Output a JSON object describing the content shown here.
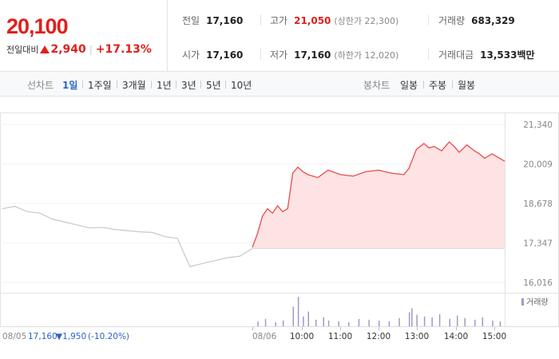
{
  "summary": {
    "current_price": "20,100",
    "change_label": "전일대비",
    "change_amount": "2,940",
    "change_percent": "+17.13%",
    "stats": {
      "prev_close": {
        "label": "전일",
        "value": "17,160"
      },
      "high": {
        "label": "고가",
        "value": "21,050",
        "sub": "(상한가 22,300)"
      },
      "volume": {
        "label": "거래량",
        "value": "683,329"
      },
      "open": {
        "label": "시가",
        "value": "17,160"
      },
      "low": {
        "label": "저가",
        "value": "17,160",
        "sub": "(하한가 12,020)"
      },
      "trade_value": {
        "label": "거래대금",
        "value": "13,533",
        "unit": "백만"
      }
    }
  },
  "toolbar": {
    "line_label": "선차트",
    "line_tabs": [
      "1일",
      "1주일",
      "3개월",
      "1년",
      "3년",
      "5년",
      "10년"
    ],
    "line_active": "1일",
    "candle_label": "봉차트",
    "candle_tabs": [
      "일봉",
      "주봉",
      "월봉"
    ]
  },
  "colors": {
    "up": "#e0201c",
    "down": "#2d64c8",
    "prev_day_line": "#c8c8c8",
    "today_line": "#ec4a4a",
    "today_fill": "#fde3e3",
    "volume_bar": "#a596c8"
  },
  "chart_data": {
    "type": "line",
    "price_axis": {
      "ticks": [
        "21,340",
        "20,009",
        "18,678",
        "17,347",
        "16,016"
      ],
      "tick_values": [
        21340,
        20009,
        18678,
        17347,
        16016
      ],
      "ylim": [
        16016,
        21340
      ]
    },
    "reference_price": 17160,
    "prev_day_info": {
      "date": "08/05",
      "close": "17,160",
      "change": "1,950",
      "change_percent": "(-10.20%)"
    },
    "x_ticks": [
      "08/06",
      "10:00",
      "11:00",
      "12:00",
      "13:00",
      "14:00",
      "15:00"
    ],
    "volume_legend": "거래량",
    "prev_day_series": {
      "name": "",
      "x": [
        0,
        0.05,
        0.1,
        0.15,
        0.2,
        0.25,
        0.3,
        0.35,
        0.4,
        0.45,
        0.5,
        0.55,
        0.6,
        0.65,
        0.7,
        0.75,
        0.8,
        0.85,
        0.9,
        0.95,
        1.0
      ],
      "values": [
        18500,
        18580,
        18400,
        18350,
        18150,
        18050,
        17950,
        17850,
        17870,
        17800,
        17760,
        17720,
        17700,
        17560,
        17500,
        16550,
        16650,
        16750,
        16850,
        16900,
        17160
      ]
    },
    "today_series": {
      "name": "",
      "x": [
        0,
        0.02,
        0.04,
        0.06,
        0.08,
        0.1,
        0.12,
        0.14,
        0.16,
        0.18,
        0.2,
        0.22,
        0.26,
        0.3,
        0.35,
        0.4,
        0.45,
        0.5,
        0.55,
        0.6,
        0.62,
        0.65,
        0.68,
        0.7,
        0.72,
        0.75,
        0.78,
        0.8,
        0.82,
        0.85,
        0.88,
        0.9,
        0.92,
        0.95,
        0.97,
        1.0
      ],
      "values": [
        17200,
        17650,
        18250,
        18500,
        18350,
        18600,
        18400,
        18500,
        19700,
        19900,
        19750,
        19650,
        19550,
        19800,
        19650,
        19600,
        19750,
        19800,
        19700,
        19650,
        19850,
        20500,
        20700,
        20550,
        20600,
        20450,
        20750,
        20600,
        20400,
        20650,
        20450,
        20350,
        20200,
        20350,
        20250,
        20100
      ]
    },
    "volume_bars": {
      "x": [
        0.02,
        0.05,
        0.09,
        0.12,
        0.16,
        0.18,
        0.2,
        0.22,
        0.25,
        0.28,
        0.3,
        0.34,
        0.38,
        0.42,
        0.46,
        0.5,
        0.54,
        0.58,
        0.62,
        0.63,
        0.65,
        0.68,
        0.71,
        0.74,
        0.78,
        0.81,
        0.84,
        0.88,
        0.91,
        0.95,
        0.98
      ],
      "values": [
        30,
        45,
        25,
        35,
        120,
        180,
        60,
        90,
        40,
        55,
        35,
        30,
        25,
        45,
        40,
        35,
        30,
        50,
        85,
        110,
        70,
        60,
        55,
        75,
        45,
        65,
        50,
        40,
        55,
        35,
        30
      ]
    }
  }
}
